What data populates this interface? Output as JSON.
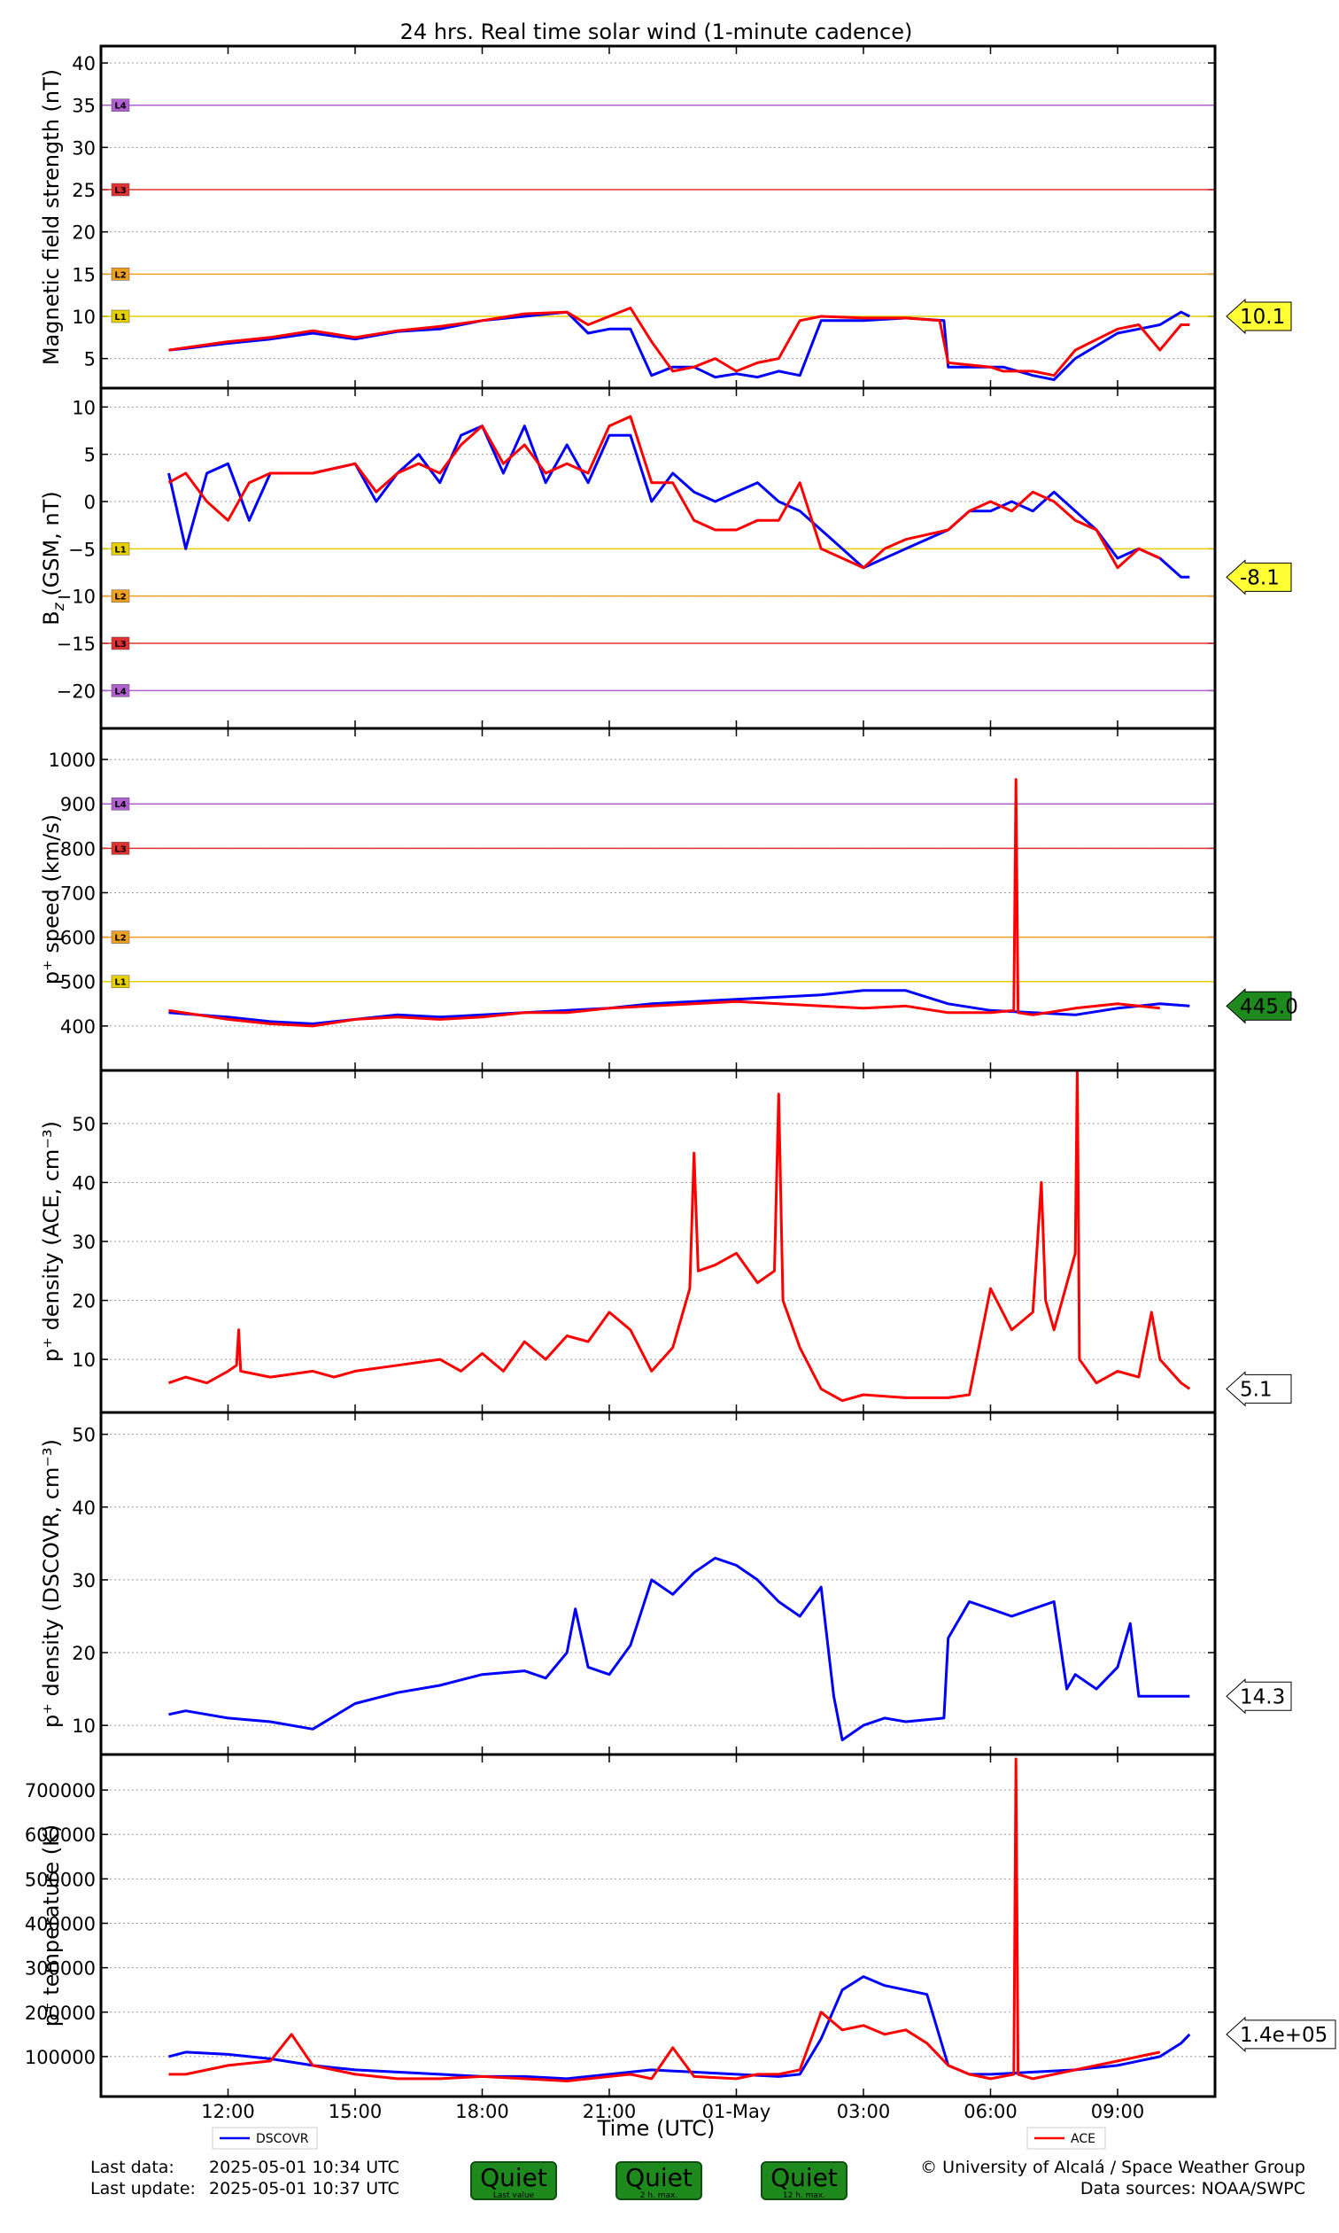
{
  "title": "24 hrs. Real time solar wind (1-minute cadence)",
  "colors": {
    "dscovr": "#0000ff",
    "ace": "#ff0000",
    "L1": "#e6d000",
    "L2": "#f0a020",
    "L3": "#e03030",
    "L4": "#b060d0",
    "quiet": "#1e8a1e"
  },
  "chart_data": [
    {
      "type": "line",
      "ylabel": "Magnetic field strength (nT)",
      "ylim": [
        1.5,
        42
      ],
      "yticks": [
        5,
        10,
        15,
        20,
        25,
        30,
        35,
        40
      ],
      "grid": true,
      "thresholds": [
        {
          "label": "L1",
          "value": 10
        },
        {
          "label": "L2",
          "value": 15
        },
        {
          "label": "L3",
          "value": 25
        },
        {
          "label": "L4",
          "value": 35
        }
      ],
      "current_value": "10.1",
      "current_color": "#ffff33",
      "series": [
        {
          "name": "DSCOVR",
          "color": "#0000ff",
          "x": [
            10.6,
            11.0,
            12.0,
            13.0,
            14.0,
            15.0,
            16.0,
            17.0,
            18.0,
            19.0,
            20.0,
            20.5,
            21.0,
            21.5,
            22.0,
            22.5,
            23.0,
            23.5,
            24.0,
            24.5,
            25.0,
            25.5,
            26.0,
            27.0,
            28.0,
            28.9,
            29.0,
            30.0,
            30.3,
            31.0,
            31.5,
            32.0,
            33.0,
            33.5,
            34.0,
            34.5,
            34.7
          ],
          "y": [
            6,
            6.2,
            6.8,
            7.3,
            8,
            7.3,
            8.2,
            8.5,
            9.5,
            10,
            10.5,
            8,
            8.5,
            8.5,
            3,
            4,
            4,
            2.8,
            3.2,
            2.8,
            3.5,
            3,
            9.5,
            9.5,
            9.8,
            9.5,
            4,
            4,
            4,
            3,
            2.5,
            5,
            8,
            8.5,
            9,
            10.5,
            10
          ]
        },
        {
          "name": "ACE",
          "color": "#ff0000",
          "x": [
            10.6,
            11.0,
            12.0,
            13.0,
            14.0,
            15.0,
            16.0,
            17.0,
            18.0,
            19.0,
            20.0,
            20.5,
            21.0,
            21.5,
            22.0,
            22.5,
            23.0,
            23.5,
            24.0,
            24.5,
            25.0,
            25.5,
            26.0,
            27.0,
            28.0,
            28.8,
            29.0,
            30.0,
            30.3,
            31.0,
            31.5,
            32.0,
            33.0,
            33.5,
            34.0,
            34.5,
            34.7
          ],
          "y": [
            6,
            6.3,
            7,
            7.5,
            8.3,
            7.5,
            8.3,
            8.8,
            9.5,
            10.3,
            10.5,
            9,
            10,
            11,
            7,
            3.5,
            4,
            5,
            3.5,
            4.5,
            5,
            9.5,
            10,
            9.8,
            9.8,
            9.5,
            4.5,
            4,
            3.5,
            3.5,
            3,
            6,
            8.5,
            9,
            6,
            9,
            9
          ]
        }
      ]
    },
    {
      "type": "line",
      "ylabel": "B_z (GSM, nT)",
      "ylim": [
        -24,
        12
      ],
      "yticks": [
        -20,
        -15,
        -10,
        -5,
        0,
        5,
        10
      ],
      "grid": true,
      "thresholds": [
        {
          "label": "L1",
          "value": -5
        },
        {
          "label": "L2",
          "value": -10
        },
        {
          "label": "L3",
          "value": -15
        },
        {
          "label": "L4",
          "value": -20
        }
      ],
      "current_value": "-8.1",
      "current_color": "#ffff33",
      "series": [
        {
          "name": "DSCOVR",
          "color": "#0000ff",
          "x": [
            10.6,
            11.0,
            11.5,
            12.0,
            12.5,
            13.0,
            14.0,
            15.0,
            15.5,
            16.0,
            16.5,
            17.0,
            17.5,
            18.0,
            18.5,
            19.0,
            19.5,
            20.0,
            20.5,
            21.0,
            21.5,
            22.0,
            22.5,
            23.0,
            23.5,
            24.0,
            24.5,
            25.0,
            25.5,
            26.0,
            26.5,
            27.0,
            27.5,
            28.0,
            29.0,
            29.5,
            30.0,
            30.5,
            31.0,
            31.5,
            32.0,
            32.5,
            33.0,
            33.5,
            34.0,
            34.5,
            34.7
          ],
          "y": [
            3,
            -5,
            3,
            4,
            -2,
            3,
            3,
            4,
            0,
            3,
            5,
            2,
            7,
            8,
            3,
            8,
            2,
            6,
            2,
            7,
            7,
            0,
            3,
            1,
            0,
            1,
            2,
            0,
            -1,
            -3,
            -5,
            -7,
            -6,
            -5,
            -3,
            -1,
            -1,
            0,
            -1,
            1,
            -1,
            -3,
            -6,
            -5,
            -6,
            -8,
            -8
          ]
        },
        {
          "name": "ACE",
          "color": "#ff0000",
          "x": [
            10.6,
            11.0,
            11.5,
            12.0,
            12.5,
            13.0,
            14.0,
            15.0,
            15.5,
            16.0,
            16.5,
            17.0,
            17.5,
            18.0,
            18.5,
            19.0,
            19.5,
            20.0,
            20.5,
            21.0,
            21.5,
            22.0,
            22.5,
            23.0,
            23.5,
            24.0,
            24.5,
            25.0,
            25.5,
            26.0,
            26.5,
            27.0,
            27.5,
            28.0,
            29.0,
            29.5,
            30.0,
            30.5,
            31.0,
            31.5,
            32.0,
            32.5,
            33.0,
            33.5,
            34.0
          ],
          "y": [
            2,
            3,
            0,
            -2,
            2,
            3,
            3,
            4,
            1,
            3,
            4,
            3,
            6,
            8,
            4,
            6,
            3,
            4,
            3,
            8,
            9,
            2,
            2,
            -2,
            -3,
            -3,
            -2,
            -2,
            2,
            -5,
            -6,
            -7,
            -5,
            -4,
            -3,
            -1,
            0,
            -1,
            1,
            0,
            -2,
            -3,
            -7,
            -5,
            -6
          ]
        }
      ]
    },
    {
      "type": "line",
      "ylabel": "p⁺ speed (km/s)",
      "ylim": [
        300,
        1070
      ],
      "yticks": [
        400,
        500,
        600,
        700,
        800,
        900,
        1000
      ],
      "grid": true,
      "thresholds": [
        {
          "label": "L1",
          "value": 500
        },
        {
          "label": "L2",
          "value": 600
        },
        {
          "label": "L3",
          "value": 800
        },
        {
          "label": "L4",
          "value": 900
        }
      ],
      "current_value": "445.0",
      "current_color": "#1e8a1e",
      "series": [
        {
          "name": "DSCOVR",
          "color": "#0000ff",
          "x": [
            10.6,
            12.0,
            13.0,
            14.0,
            15.0,
            16.0,
            17.0,
            18.0,
            19.0,
            20.0,
            21.0,
            22.0,
            23.0,
            24.0,
            25.0,
            26.0,
            27.0,
            28.0,
            29.0,
            30.0,
            31.0,
            32.0,
            33.0,
            34.0,
            34.7
          ],
          "y": [
            430,
            420,
            410,
            405,
            415,
            425,
            420,
            425,
            430,
            435,
            440,
            450,
            455,
            460,
            465,
            470,
            480,
            480,
            450,
            435,
            430,
            425,
            440,
            450,
            445
          ]
        },
        {
          "name": "ACE",
          "color": "#ff0000",
          "x": [
            10.6,
            12.0,
            13.0,
            14.0,
            15.0,
            16.0,
            17.0,
            18.0,
            19.0,
            20.0,
            21.0,
            22.0,
            23.0,
            24.0,
            25.0,
            26.0,
            27.0,
            28.0,
            29.0,
            30.0,
            30.55,
            30.6,
            30.65,
            31.0,
            32.0,
            33.0,
            34.0
          ],
          "y": [
            435,
            415,
            405,
            400,
            415,
            420,
            415,
            420,
            430,
            430,
            440,
            445,
            450,
            455,
            450,
            445,
            440,
            445,
            430,
            430,
            435,
            955,
            430,
            425,
            440,
            450,
            440
          ]
        }
      ]
    },
    {
      "type": "line",
      "ylabel": "p⁺ density (ACE, cm⁻³)",
      "ylim": [
        1,
        59
      ],
      "yticks": [
        10,
        20,
        30,
        40,
        50
      ],
      "grid": true,
      "current_value": "5.1",
      "current_color": "#ffffff",
      "series": [
        {
          "name": "ACE",
          "color": "#ff0000",
          "x": [
            10.6,
            11.0,
            11.5,
            12.0,
            12.2,
            12.25,
            12.3,
            13.0,
            14.0,
            14.5,
            15.0,
            16.0,
            17.0,
            17.5,
            18.0,
            18.5,
            19.0,
            19.5,
            20.0,
            20.5,
            21.0,
            21.5,
            22.0,
            22.5,
            22.9,
            23.0,
            23.1,
            23.5,
            24.0,
            24.5,
            24.9,
            25.0,
            25.1,
            25.5,
            26.0,
            26.5,
            27.0,
            28.0,
            29.0,
            29.5,
            30.0,
            30.5,
            31.0,
            31.2,
            31.3,
            31.5,
            32.0,
            32.05,
            32.1,
            32.5,
            33.0,
            33.5,
            33.8,
            34.0,
            34.5,
            34.7
          ],
          "y": [
            6,
            7,
            6,
            8,
            9,
            15,
            8,
            7,
            8,
            7,
            8,
            9,
            10,
            8,
            11,
            8,
            13,
            10,
            14,
            13,
            18,
            15,
            8,
            12,
            22,
            45,
            25,
            26,
            28,
            23,
            25,
            55,
            20,
            12,
            5,
            3,
            4,
            3.5,
            3.5,
            4,
            22,
            15,
            18,
            40,
            20,
            15,
            28,
            60,
            10,
            6,
            8,
            7,
            18,
            10,
            6,
            5
          ]
        }
      ]
    },
    {
      "type": "line",
      "ylabel": "p⁺ density (DSCOVR, cm⁻³)",
      "ylim": [
        6,
        53
      ],
      "yticks": [
        10,
        20,
        30,
        40,
        50
      ],
      "grid": true,
      "current_value": "14.3",
      "current_color": "#ffffff",
      "series": [
        {
          "name": "DSCOVR",
          "color": "#0000ff",
          "x": [
            10.6,
            11.0,
            12.0,
            13.0,
            14.0,
            15.0,
            16.0,
            17.0,
            18.0,
            19.0,
            19.5,
            20.0,
            20.2,
            20.5,
            21.0,
            21.5,
            22.0,
            22.5,
            23.0,
            23.5,
            24.0,
            24.5,
            25.0,
            25.5,
            26.0,
            26.3,
            26.5,
            27.0,
            27.5,
            28.0,
            28.9,
            29.0,
            29.5,
            30.0,
            30.5,
            31.0,
            31.5,
            31.8,
            32.0,
            32.5,
            33.0,
            33.3,
            33.5,
            34.0,
            34.5,
            34.7
          ],
          "y": [
            11.5,
            12,
            11,
            10.5,
            9.5,
            13,
            14.5,
            15.5,
            17,
            17.5,
            16.5,
            20,
            26,
            18,
            17,
            21,
            30,
            28,
            31,
            33,
            32,
            30,
            27,
            25,
            29,
            14,
            8,
            10,
            11,
            10.5,
            11,
            22,
            27,
            26,
            25,
            26,
            27,
            15,
            17,
            15,
            18,
            24,
            14,
            14,
            14,
            14
          ]
        }
      ]
    },
    {
      "type": "line",
      "ylabel": "p⁺ temperature (K)",
      "ylim": [
        10000,
        780000
      ],
      "yticks": [
        100000,
        200000,
        300000,
        400000,
        500000,
        600000,
        700000
      ],
      "grid": true,
      "current_value": "1.4e+05",
      "current_color": "#ffffff",
      "series": [
        {
          "name": "DSCOVR",
          "color": "#0000ff",
          "x": [
            10.6,
            11.0,
            12.0,
            13.0,
            14.0,
            15.0,
            16.0,
            17.0,
            18.0,
            19.0,
            20.0,
            21.0,
            22.0,
            23.0,
            24.0,
            25.0,
            25.5,
            26.0,
            26.5,
            27.0,
            27.5,
            28.0,
            28.5,
            29.0,
            29.5,
            30.0,
            31.0,
            32.0,
            33.0,
            34.0,
            34.5,
            34.7
          ],
          "y": [
            100000,
            110000,
            105000,
            95000,
            80000,
            70000,
            65000,
            60000,
            55000,
            55000,
            50000,
            60000,
            70000,
            65000,
            60000,
            55000,
            60000,
            140000,
            250000,
            280000,
            260000,
            250000,
            240000,
            80000,
            60000,
            60000,
            65000,
            70000,
            80000,
            100000,
            130000,
            150000
          ]
        },
        {
          "name": "ACE",
          "color": "#ff0000",
          "x": [
            10.6,
            11.0,
            12.0,
            13.0,
            13.5,
            14.0,
            15.0,
            16.0,
            17.0,
            18.0,
            19.0,
            20.0,
            21.0,
            21.5,
            22.0,
            22.5,
            23.0,
            24.0,
            24.5,
            25.0,
            25.5,
            26.0,
            26.5,
            27.0,
            27.5,
            28.0,
            28.5,
            29.0,
            29.5,
            30.0,
            30.55,
            30.6,
            30.65,
            31.0,
            31.5,
            32.0,
            32.5,
            33.0,
            33.5,
            34.0
          ],
          "y": [
            60000,
            60000,
            80000,
            90000,
            150000,
            80000,
            60000,
            50000,
            50000,
            55000,
            50000,
            45000,
            55000,
            60000,
            50000,
            120000,
            55000,
            50000,
            60000,
            60000,
            70000,
            200000,
            160000,
            170000,
            150000,
            160000,
            130000,
            80000,
            60000,
            50000,
            60000,
            770000,
            60000,
            50000,
            60000,
            70000,
            80000,
            90000,
            100000,
            110000
          ]
        }
      ]
    }
  ],
  "xaxis": {
    "label": "Time (UTC)",
    "xlim": [
      9.0,
      35.3
    ],
    "ticks": [
      {
        "value": 12,
        "label": "12:00"
      },
      {
        "value": 15,
        "label": "15:00"
      },
      {
        "value": 18,
        "label": "18:00"
      },
      {
        "value": 21,
        "label": "21:00"
      },
      {
        "value": 24,
        "label": "01-May"
      },
      {
        "value": 27,
        "label": "03:00"
      },
      {
        "value": 30,
        "label": "06:00"
      },
      {
        "value": 33,
        "label": "09:00"
      }
    ]
  },
  "legend": {
    "dscovr": "DSCOVR",
    "ace": "ACE"
  },
  "footer": {
    "last_data_label": "Last data:",
    "last_data_value": "2025-05-01 10:34 UTC",
    "last_update_label": "Last update:",
    "last_update_value": "2025-05-01 10:37 UTC",
    "status": [
      {
        "label": "Quiet",
        "sub": "Last value"
      },
      {
        "label": "Quiet",
        "sub": "2 h. max."
      },
      {
        "label": "Quiet",
        "sub": "12 h. max."
      }
    ],
    "credit": "© University of Alcalá / Space Weather Group",
    "sources": "Data sources: NOAA/SWPC"
  }
}
